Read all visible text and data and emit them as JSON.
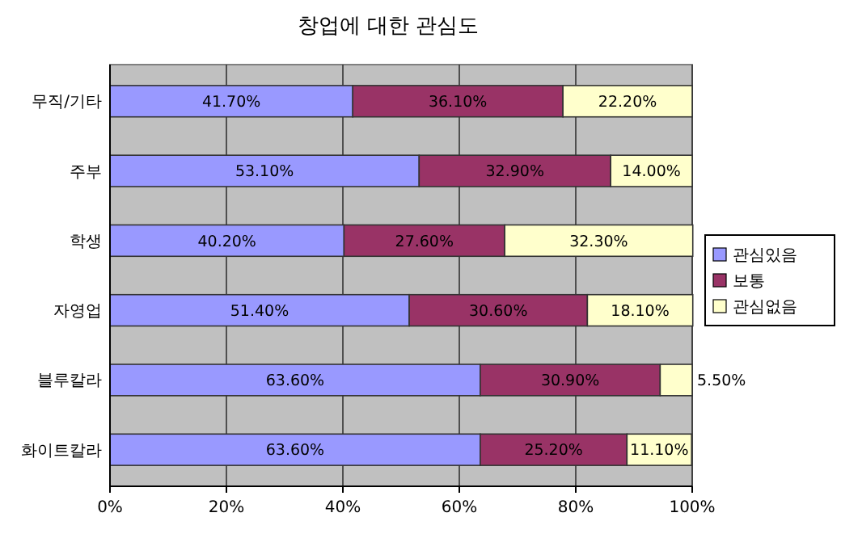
{
  "chart_data": {
    "type": "bar",
    "title": "창업에 대한 관심도",
    "orientation": "horizontal",
    "stacked": true,
    "categories": [
      "무직/기타",
      "주부",
      "학생",
      "자영업",
      "블루칼라",
      "화이트칼라"
    ],
    "series": [
      {
        "name": "관심있음",
        "color": "#9999ff",
        "values": [
          41.7,
          53.1,
          40.2,
          51.4,
          63.6,
          63.6
        ],
        "value_labels": [
          "41.70%",
          "53.10%",
          "40.20%",
          "51.40%",
          "63.60%",
          "63.60%"
        ]
      },
      {
        "name": "보통",
        "color": "#993366",
        "values": [
          36.1,
          32.9,
          27.6,
          30.6,
          30.9,
          25.2
        ],
        "value_labels": [
          "36.10%",
          "32.90%",
          "27.60%",
          "30.60%",
          "30.90%",
          "25.20%"
        ]
      },
      {
        "name": "관심없음",
        "color": "#ffffcc",
        "values": [
          22.2,
          14.0,
          32.3,
          18.1,
          5.5,
          11.1
        ],
        "value_labels": [
          "22.20%",
          "14.00%",
          "32.30%",
          "18.10%",
          "5.50%",
          "11.10%"
        ]
      }
    ],
    "xlim": [
      0,
      100
    ],
    "xticks": [
      {
        "value": 0,
        "label": "0%"
      },
      {
        "value": 20,
        "label": "20%"
      },
      {
        "value": 40,
        "label": "40%"
      },
      {
        "value": 60,
        "label": "60%"
      },
      {
        "value": 80,
        "label": "80%"
      },
      {
        "value": 100,
        "label": "100%"
      }
    ],
    "grid": "x",
    "legend": "right"
  }
}
